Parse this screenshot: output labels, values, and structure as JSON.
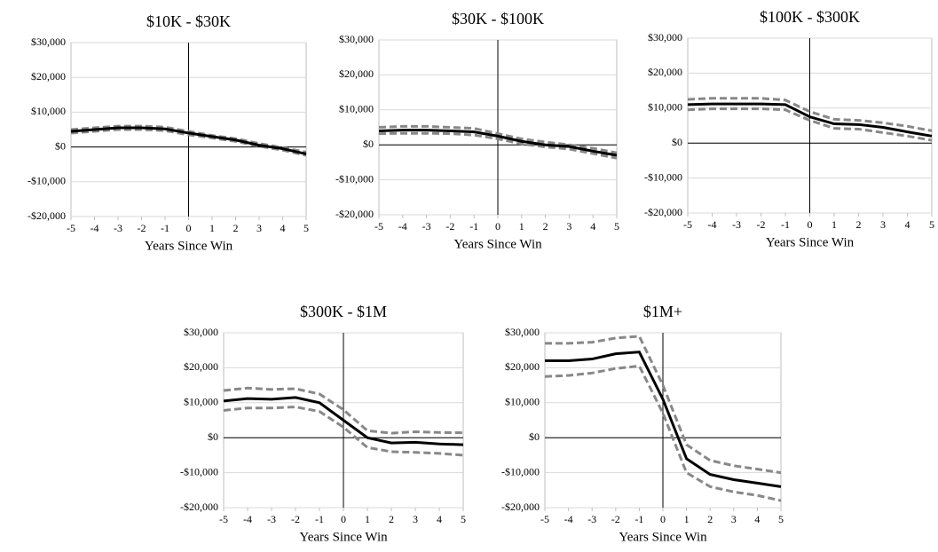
{
  "chart_data": [
    {
      "type": "line",
      "title": "$10K - $30K",
      "x_label": "Years Since Win",
      "x": [
        -5,
        -4,
        -3,
        -2,
        -1,
        0,
        1,
        2,
        3,
        4,
        5
      ],
      "xlim": [
        -5,
        5
      ],
      "xticks": [
        -5,
        -4,
        -3,
        -2,
        -1,
        0,
        1,
        2,
        3,
        4,
        5
      ],
      "ylim": [
        -20000,
        30000
      ],
      "yticks": [
        {
          "value": -20000,
          "label": "-$20,000"
        },
        {
          "value": -10000,
          "label": "-$10,000"
        },
        {
          "value": 0,
          "label": "$0"
        },
        {
          "value": 10000,
          "label": "$10,000"
        },
        {
          "value": 20000,
          "label": "$20,000"
        },
        {
          "value": 30000,
          "label": "$30,000"
        }
      ],
      "grid": true,
      "series": [
        {
          "color": "#888888",
          "dashed": true,
          "values": [
            5000,
            5500,
            6000,
            6000,
            5700,
            4500,
            3300,
            2400,
            1000,
            -200,
            -1500
          ]
        },
        {
          "color": "#888888",
          "dashed": true,
          "values": [
            4000,
            4500,
            5000,
            5000,
            4700,
            3500,
            2600,
            1600,
            200,
            -900,
            -2400
          ]
        },
        {
          "color": "#000000",
          "dashed": false,
          "values": [
            4500,
            5000,
            5500,
            5500,
            5200,
            4000,
            3000,
            2000,
            500,
            -500,
            -2000
          ]
        }
      ]
    },
    {
      "type": "line",
      "title": "$30K - $100K",
      "x_label": "Years Since Win",
      "x": [
        -5,
        -4,
        -3,
        -2,
        -1,
        0,
        1,
        2,
        3,
        4,
        5
      ],
      "xlim": [
        -5,
        5
      ],
      "xticks": [
        -5,
        -4,
        -3,
        -2,
        -1,
        0,
        1,
        2,
        3,
        4,
        5
      ],
      "ylim": [
        -20000,
        30000
      ],
      "yticks": [
        {
          "value": -20000,
          "label": "-$20,000"
        },
        {
          "value": -10000,
          "label": "-$10,000"
        },
        {
          "value": 0,
          "label": "$0"
        },
        {
          "value": 10000,
          "label": "$10,000"
        },
        {
          "value": 20000,
          "label": "$20,000"
        },
        {
          "value": 30000,
          "label": "$30,000"
        }
      ],
      "grid": true,
      "series": [
        {
          "color": "#888888",
          "dashed": true,
          "values": [
            5000,
            5300,
            5300,
            5000,
            4700,
            3200,
            1700,
            800,
            0,
            -1000,
            -2300
          ]
        },
        {
          "color": "#888888",
          "dashed": true,
          "values": [
            3200,
            3300,
            3300,
            3200,
            2800,
            1700,
            300,
            -600,
            -1200,
            -2500,
            -3800
          ]
        },
        {
          "color": "#000000",
          "dashed": false,
          "values": [
            4000,
            4200,
            4200,
            4000,
            3700,
            2500,
            1000,
            0,
            -500,
            -1800,
            -3000
          ]
        }
      ]
    },
    {
      "type": "line",
      "title": "$100K - $300K",
      "x_label": "Years Since Win",
      "x": [
        -5,
        -4,
        -3,
        -2,
        -1,
        0,
        1,
        2,
        3,
        4,
        5
      ],
      "xlim": [
        -5,
        5
      ],
      "xticks": [
        -5,
        -4,
        -3,
        -2,
        -1,
        0,
        1,
        2,
        3,
        4,
        5
      ],
      "ylim": [
        -20000,
        30000
      ],
      "yticks": [
        {
          "value": -20000,
          "label": "-$20,000"
        },
        {
          "value": -10000,
          "label": "-$10,000"
        },
        {
          "value": 0,
          "label": "$0"
        },
        {
          "value": 10000,
          "label": "$10,000"
        },
        {
          "value": 20000,
          "label": "$20,000"
        },
        {
          "value": 30000,
          "label": "$30,000"
        }
      ],
      "grid": true,
      "series": [
        {
          "color": "#888888",
          "dashed": true,
          "values": [
            12500,
            12800,
            12800,
            12800,
            12300,
            9000,
            6800,
            6500,
            5800,
            4800,
            3500
          ]
        },
        {
          "color": "#888888",
          "dashed": true,
          "values": [
            9500,
            9800,
            9800,
            9800,
            9500,
            6500,
            4200,
            4000,
            3000,
            2000,
            800
          ]
        },
        {
          "color": "#000000",
          "dashed": false,
          "values": [
            11000,
            11200,
            11200,
            11200,
            11000,
            7500,
            5500,
            5300,
            4500,
            3200,
            2000
          ]
        }
      ]
    },
    {
      "type": "line",
      "title": "$300K - $1M",
      "x_label": "Years Since Win",
      "x": [
        -5,
        -4,
        -3,
        -2,
        -1,
        0,
        1,
        2,
        3,
        4,
        5
      ],
      "xlim": [
        -5,
        5
      ],
      "xticks": [
        -5,
        -4,
        -3,
        -2,
        -1,
        0,
        1,
        2,
        3,
        4,
        5
      ],
      "ylim": [
        -20000,
        30000
      ],
      "yticks": [
        {
          "value": -20000,
          "label": "-$20,000"
        },
        {
          "value": -10000,
          "label": "-$10,000"
        },
        {
          "value": 0,
          "label": "$0"
        },
        {
          "value": 10000,
          "label": "$10,000"
        },
        {
          "value": 20000,
          "label": "$20,000"
        },
        {
          "value": 30000,
          "label": "$30,000"
        }
      ],
      "grid": true,
      "series": [
        {
          "color": "#888888",
          "dashed": true,
          "values": [
            13500,
            14200,
            13800,
            14000,
            12500,
            8000,
            2000,
            1300,
            1700,
            1500,
            1400
          ]
        },
        {
          "color": "#888888",
          "dashed": true,
          "values": [
            7800,
            8500,
            8500,
            8800,
            7500,
            3000,
            -2800,
            -4000,
            -4200,
            -4500,
            -5000
          ]
        },
        {
          "color": "#000000",
          "dashed": false,
          "values": [
            10500,
            11200,
            11000,
            11500,
            10000,
            5000,
            0,
            -1500,
            -1300,
            -1800,
            -2000
          ]
        }
      ]
    },
    {
      "type": "line",
      "title": "$1M+",
      "x_label": "Years Since Win",
      "x": [
        -5,
        -4,
        -3,
        -2,
        -1,
        0,
        1,
        2,
        3,
        4,
        5
      ],
      "xlim": [
        -5,
        5
      ],
      "xticks": [
        -5,
        -4,
        -3,
        -2,
        -1,
        0,
        1,
        2,
        3,
        4,
        5
      ],
      "ylim": [
        -20000,
        30000
      ],
      "yticks": [
        {
          "value": -20000,
          "label": "-$20,000"
        },
        {
          "value": -10000,
          "label": "-$10,000"
        },
        {
          "value": 0,
          "label": "$0"
        },
        {
          "value": 10000,
          "label": "$10,000"
        },
        {
          "value": 20000,
          "label": "$20,000"
        },
        {
          "value": 30000,
          "label": "$30,000"
        }
      ],
      "grid": true,
      "series": [
        {
          "color": "#888888",
          "dashed": true,
          "values": [
            27000,
            27000,
            27300,
            28500,
            29000,
            15000,
            -2000,
            -6500,
            -8000,
            -9000,
            -10000
          ]
        },
        {
          "color": "#888888",
          "dashed": true,
          "values": [
            17500,
            17800,
            18500,
            19800,
            20500,
            7000,
            -10000,
            -14000,
            -15500,
            -16500,
            -18000
          ]
        },
        {
          "color": "#000000",
          "dashed": false,
          "values": [
            22000,
            22000,
            22500,
            24000,
            24500,
            11000,
            -6000,
            -10500,
            -12000,
            -13000,
            -14000
          ]
        }
      ]
    }
  ]
}
